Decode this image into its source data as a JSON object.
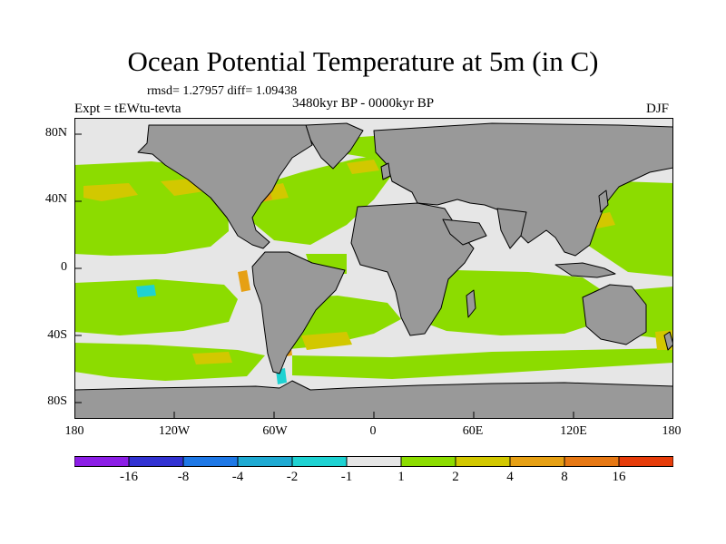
{
  "title": "Ocean Potential Temperature at 5m (in C)",
  "stats": "rmsd= 1.27957  diff= 1.09438",
  "experiment": "Expt = tEWtu-tevta",
  "period": "3480kyr BP - 0000kyr BP",
  "season": "DJF",
  "lat_labels": [
    "80N",
    "40N",
    "0",
    "40S",
    "80S"
  ],
  "lon_labels": [
    "180",
    "120W",
    "60W",
    "0",
    "60E",
    "120E",
    "180"
  ],
  "colorbar": {
    "colors": [
      "#8c1ee6",
      "#3232d2",
      "#1e78e6",
      "#1eaad2",
      "#1ed2d2",
      "#e6e6e6",
      "#8cdc00",
      "#d2c800",
      "#e6a014",
      "#e67814",
      "#e63c0a"
    ],
    "labels": [
      "-16",
      "-8",
      "-4",
      "-2",
      "-1",
      "1",
      "2",
      "4",
      "8",
      "16"
    ]
  },
  "colors": {
    "land": "#999999",
    "ocean_bg": "#e6e6e6",
    "warm_1_2": "#8cdc00",
    "warm_2_4": "#d2c800",
    "warm_4_8": "#e6a014",
    "cool": "#1ed2d2"
  }
}
